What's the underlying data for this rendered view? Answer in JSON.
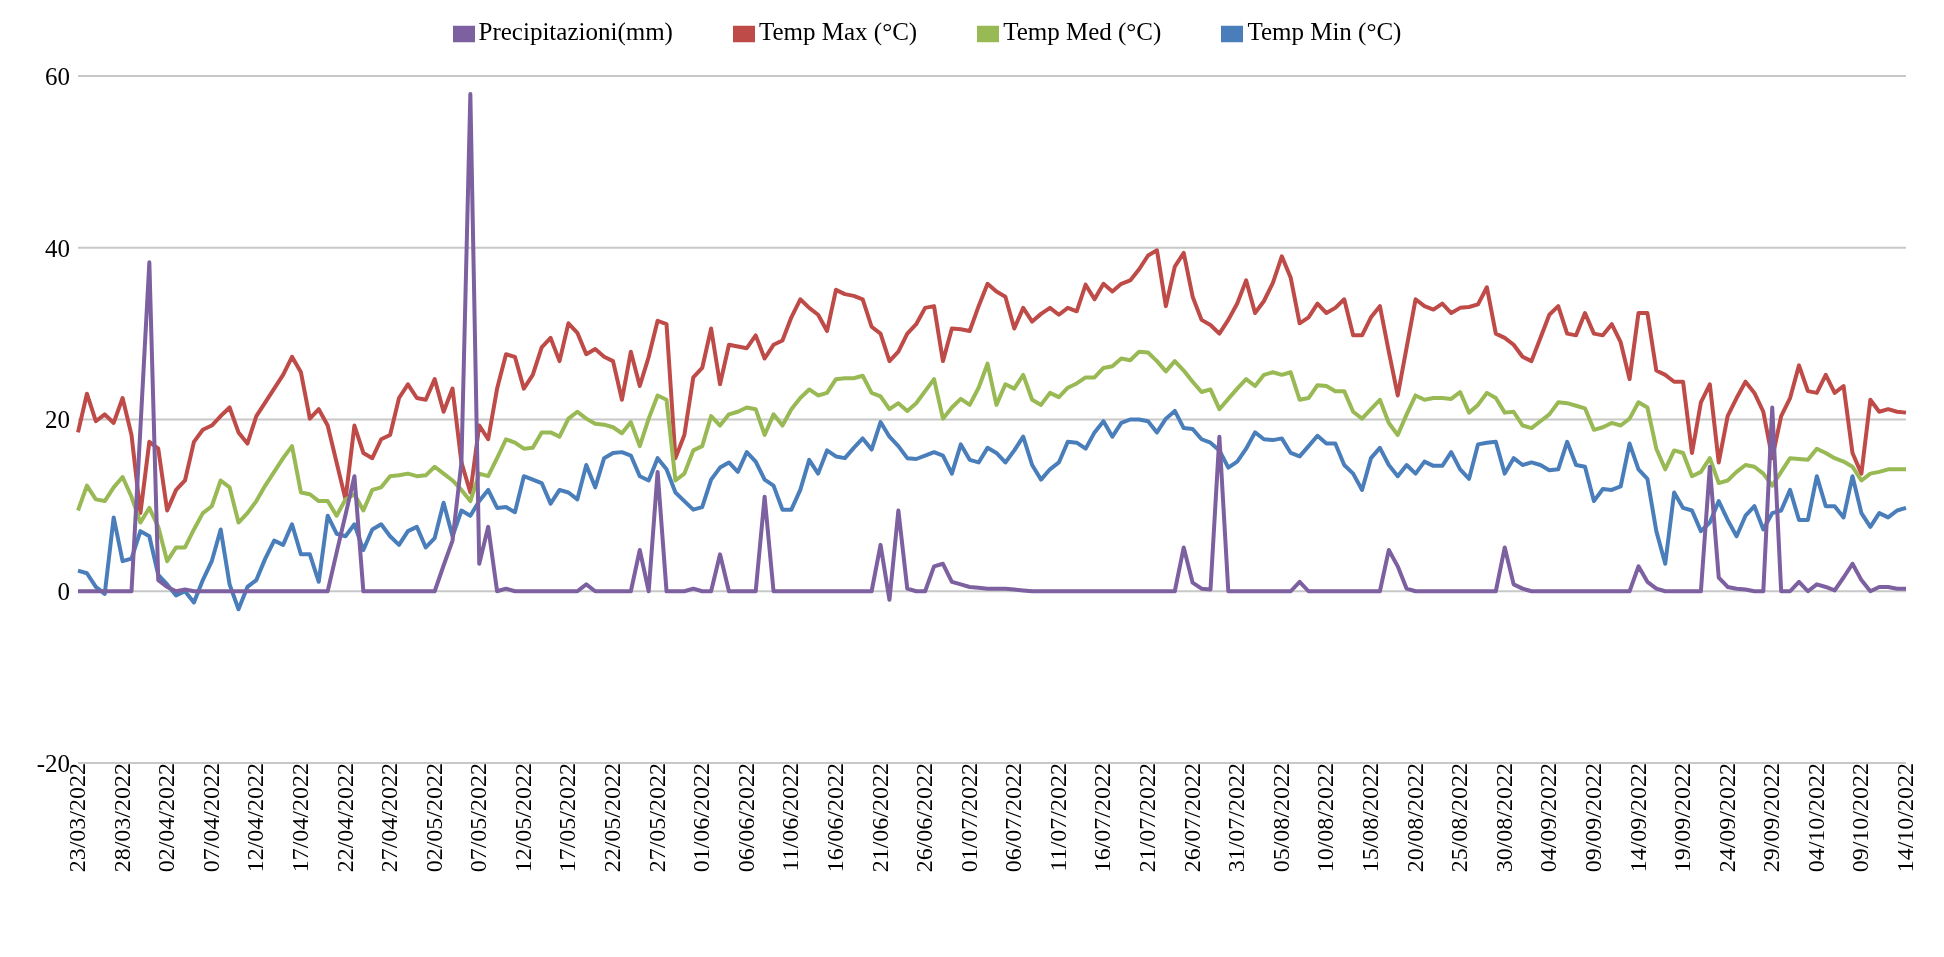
{
  "chart_data": {
    "type": "line",
    "categories": [
      "23/03/2022",
      null,
      null,
      null,
      null,
      "28/03/2022",
      null,
      null,
      null,
      null,
      "02/04/2022",
      null,
      null,
      null,
      null,
      "07/04/2022",
      null,
      null,
      null,
      null,
      "12/04/2022",
      null,
      null,
      null,
      null,
      "17/04/2022",
      null,
      null,
      null,
      null,
      "22/04/2022",
      null,
      null,
      null,
      null,
      "27/04/2022",
      null,
      null,
      null,
      null,
      "02/05/2022",
      null,
      null,
      null,
      null,
      "07/05/2022",
      null,
      null,
      null,
      null,
      "12/05/2022",
      null,
      null,
      null,
      null,
      "17/05/2022",
      null,
      null,
      null,
      null,
      "22/05/2022",
      null,
      null,
      null,
      null,
      "27/05/2022",
      null,
      null,
      null,
      null,
      "01/06/2022",
      null,
      null,
      null,
      null,
      "06/06/2022",
      null,
      null,
      null,
      null,
      "11/06/2022",
      null,
      null,
      null,
      null,
      "16/06/2022",
      null,
      null,
      null,
      null,
      "21/06/2022",
      null,
      null,
      null,
      null,
      "26/06/2022",
      null,
      null,
      null,
      null,
      "01/07/2022",
      null,
      null,
      null,
      null,
      "06/07/2022",
      null,
      null,
      null,
      null,
      "11/07/2022",
      null,
      null,
      null,
      null,
      "16/07/2022",
      null,
      null,
      null,
      null,
      "21/07/2022",
      null,
      null,
      null,
      null,
      "26/07/2022",
      null,
      null,
      null,
      null,
      "31/07/2022",
      null,
      null,
      null,
      null,
      "05/08/2022",
      null,
      null,
      null,
      null,
      "10/08/2022",
      null,
      null,
      null,
      null,
      "15/08/2022",
      null,
      null,
      null,
      null,
      "20/08/2022",
      null,
      null,
      null,
      null,
      "25/08/2022",
      null,
      null,
      null,
      null,
      "30/08/2022",
      null,
      null,
      null,
      null,
      "04/09/2022",
      null,
      null,
      null,
      null,
      "09/09/2022",
      null,
      null,
      null,
      null,
      "14/09/2022",
      null,
      null,
      null,
      null,
      "19/09/2022",
      null,
      null,
      null,
      null,
      "24/09/2022",
      null,
      null,
      null,
      null,
      "29/09/2022",
      null,
      null,
      null,
      null,
      "04/10/2022",
      null,
      null,
      null,
      null,
      "09/10/2022",
      null,
      null,
      null,
      null,
      "14/10/2022"
    ],
    "series": [
      {
        "name": "Temp Min (°C)",
        "color": "#4a7ebb",
        "values": [
          2.4,
          2.1,
          0.5,
          -0.3,
          8.6,
          3.5,
          3.8,
          7.0,
          6.4,
          1.9,
          0.8,
          -0.5,
          0,
          -1.3,
          1.3,
          3.5,
          7.2,
          0.8,
          -2.1,
          0.5,
          1.3,
          3.8,
          5.9,
          5.4,
          7.8,
          4.3,
          4.3,
          1.1,
          8.8,
          6.7,
          6.4,
          7.8,
          4.8,
          7.2,
          7.8,
          6.4,
          5.4,
          7.0,
          7.5,
          5.1,
          6.2,
          10.3,
          6.4,
          9.4,
          8.8,
          10.5,
          11.8,
          9.7,
          9.8,
          9.2,
          13.4,
          13.0,
          12.6,
          10.2,
          11.8,
          11.5,
          10.7,
          14.7,
          12.1,
          15.5,
          16.1,
          16.2,
          15.8,
          13.4,
          12.9,
          15.5,
          14.2,
          11.5,
          10.5,
          9.5,
          9.8,
          13.0,
          14.4,
          15.0,
          13.9,
          16.2,
          15.1,
          13.0,
          12.3,
          9.5,
          9.5,
          11.8,
          15.3,
          13.7,
          16.4,
          15.7,
          15.5,
          16.7,
          17.8,
          16.5,
          19.7,
          18.0,
          16.9,
          15.5,
          15.4,
          15.8,
          16.2,
          15.8,
          13.7,
          17.1,
          15.3,
          15.0,
          16.7,
          16.1,
          15.0,
          16.4,
          18.0,
          14.7,
          13.0,
          14.2,
          15.0,
          17.4,
          17.3,
          16.6,
          18.5,
          19.8,
          18.0,
          19.6,
          20.0,
          20.0,
          19.8,
          18.5,
          20.1,
          21.0,
          19.0,
          18.9,
          17.7,
          17.3,
          16.4,
          14.4,
          15.1,
          16.6,
          18.5,
          17.7,
          17.6,
          17.8,
          16.1,
          15.7,
          16.9,
          18.1,
          17.2,
          17.2,
          14.7,
          13.7,
          11.8,
          15.5,
          16.7,
          14.7,
          13.4,
          14.7,
          13.7,
          15.1,
          14.6,
          14.6,
          16.2,
          14.2,
          13.1,
          17.1,
          17.3,
          17.4,
          13.7,
          15.5,
          14.7,
          15.0,
          14.7,
          14.1,
          14.2,
          17.4,
          14.7,
          14.5,
          10.5,
          11.9,
          11.8,
          12.2,
          17.2,
          14.2,
          13.1,
          7.0,
          3.2,
          11.5,
          9.7,
          9.4,
          7.0,
          8.0,
          10.5,
          8.3,
          6.4,
          8.8,
          9.9,
          7.2,
          9.1,
          9.4,
          11.8,
          8.3,
          8.3,
          13.4,
          9.9,
          9.9,
          8.6,
          13.4,
          9.1,
          7.5,
          9.1,
          8.6,
          9.4,
          9.7
        ]
      },
      {
        "name": "Temp Max (°C)",
        "color": "#be4b48",
        "values": [
          18.5,
          23.0,
          19.8,
          20.6,
          19.6,
          22.5,
          18.2,
          9.1,
          17.4,
          16.6,
          9.4,
          11.8,
          12.9,
          17.4,
          18.8,
          19.3,
          20.4,
          21.4,
          18.5,
          17.2,
          20.4,
          22.0,
          23.6,
          25.2,
          27.3,
          25.5,
          20.1,
          21.2,
          19.3,
          15.0,
          10.7,
          19.3,
          16.1,
          15.5,
          17.7,
          18.2,
          22.5,
          24.1,
          22.5,
          22.3,
          24.7,
          20.9,
          23.6,
          15.0,
          11.5,
          19.3,
          17.7,
          23.6,
          27.6,
          27.3,
          23.6,
          25.2,
          28.4,
          29.5,
          26.8,
          31.2,
          30.1,
          27.6,
          28.2,
          27.3,
          26.8,
          22.3,
          27.9,
          23.9,
          27.3,
          31.5,
          31.1,
          15.5,
          18.2,
          24.9,
          26.0,
          30.6,
          24.1,
          28.7,
          28.5,
          28.3,
          29.8,
          27.1,
          28.7,
          29.2,
          31.9,
          34.0,
          33.0,
          32.2,
          30.3,
          35.1,
          34.6,
          34.4,
          34.0,
          30.8,
          30.0,
          26.8,
          27.9,
          30.0,
          31.1,
          33.0,
          33.2,
          26.8,
          30.6,
          30.5,
          30.3,
          33.2,
          35.8,
          34.9,
          34.3,
          30.6,
          33.0,
          31.4,
          32.3,
          33.0,
          32.2,
          33.0,
          32.6,
          35.7,
          34.0,
          35.8,
          34.9,
          35.8,
          36.2,
          37.5,
          39.1,
          39.7,
          33.2,
          37.8,
          39.4,
          34.3,
          31.6,
          31.0,
          30.0,
          31.6,
          33.5,
          36.2,
          32.4,
          33.8,
          35.9,
          39.0,
          36.5,
          31.2,
          31.9,
          33.5,
          32.4,
          33.0,
          34.0,
          29.8,
          29.8,
          31.9,
          33.2,
          27.9,
          22.8,
          28.4,
          34.0,
          33.2,
          32.8,
          33.5,
          32.4,
          33.0,
          33.1,
          33.4,
          35.4,
          30.0,
          29.5,
          28.7,
          27.3,
          26.8,
          29.5,
          32.2,
          33.2,
          30.0,
          29.8,
          32.4,
          30.0,
          29.8,
          31.1,
          29.0,
          24.7,
          32.4,
          32.4,
          25.7,
          25.2,
          24.4,
          24.4,
          16.1,
          22.0,
          24.1,
          15.0,
          20.4,
          22.5,
          24.4,
          23.1,
          20.9,
          15.5,
          20.4,
          22.5,
          26.3,
          23.3,
          23.1,
          25.2,
          23.1,
          23.9,
          16.1,
          13.7,
          22.3,
          20.9,
          21.2,
          20.9,
          20.8
        ]
      },
      {
        "name": "Temp Med (°C)",
        "color": "#98b954",
        "values": [
          9.4,
          12.3,
          10.7,
          10.5,
          12.1,
          13.3,
          11.0,
          8.0,
          9.7,
          7.5,
          3.5,
          5.1,
          5.1,
          7.2,
          9.1,
          9.9,
          12.9,
          12.1,
          8.0,
          9.1,
          10.5,
          12.3,
          13.9,
          15.5,
          16.9,
          11.5,
          11.3,
          10.5,
          10.5,
          8.8,
          10.7,
          11.3,
          9.4,
          11.8,
          12.1,
          13.4,
          13.5,
          13.7,
          13.4,
          13.5,
          14.5,
          13.7,
          12.9,
          11.8,
          10.5,
          13.7,
          13.4,
          15.5,
          17.7,
          17.3,
          16.6,
          16.7,
          18.5,
          18.5,
          18.0,
          20.1,
          20.9,
          20.1,
          19.5,
          19.4,
          19.1,
          18.4,
          19.7,
          16.9,
          20.1,
          22.8,
          22.3,
          12.9,
          13.7,
          16.4,
          16.9,
          20.4,
          19.3,
          20.6,
          20.9,
          21.4,
          21.2,
          18.2,
          20.6,
          19.3,
          21.2,
          22.5,
          23.5,
          22.8,
          23.1,
          24.7,
          24.8,
          24.8,
          25.1,
          23.1,
          22.7,
          21.2,
          21.9,
          21.0,
          21.9,
          23.3,
          24.7,
          20.1,
          21.4,
          22.4,
          21.7,
          23.7,
          26.5,
          21.7,
          24.1,
          23.6,
          25.2,
          22.3,
          21.7,
          23.1,
          22.6,
          23.7,
          24.2,
          24.9,
          24.9,
          26.0,
          26.2,
          27.1,
          26.9,
          27.9,
          27.8,
          26.8,
          25.6,
          26.8,
          25.7,
          24.4,
          23.2,
          23.5,
          21.2,
          22.4,
          23.6,
          24.7,
          23.9,
          25.2,
          25.5,
          25.2,
          25.5,
          22.3,
          22.5,
          24.0,
          23.9,
          23.3,
          23.3,
          20.9,
          20.1,
          21.2,
          22.3,
          19.6,
          18.2,
          20.6,
          22.8,
          22.3,
          22.5,
          22.5,
          22.4,
          23.2,
          20.8,
          21.7,
          23.1,
          22.5,
          20.8,
          20.9,
          19.3,
          19.0,
          19.8,
          20.6,
          22.0,
          21.9,
          21.6,
          21.3,
          18.8,
          19.1,
          19.6,
          19.3,
          20.1,
          22.0,
          21.4,
          16.6,
          14.2,
          16.4,
          16.1,
          13.4,
          13.9,
          15.5,
          12.6,
          12.9,
          13.9,
          14.7,
          14.5,
          13.7,
          12.3,
          13.9,
          15.5,
          15.4,
          15.3,
          16.6,
          16.1,
          15.5,
          15.1,
          14.5,
          12.9,
          13.7,
          13.9,
          14.2,
          14.2,
          14.2
        ]
      },
      {
        "name": "Precipitazioni(mm)",
        "color": "#7d60a0",
        "values": [
          0,
          0,
          0,
          0,
          0,
          0,
          0,
          19,
          38.3,
          1.3,
          0.5,
          0,
          0.2,
          0,
          0,
          0,
          0,
          0,
          0,
          0,
          0,
          0,
          0,
          0,
          0,
          0,
          0,
          0,
          0,
          4.5,
          8.9,
          13.4,
          0,
          0,
          0,
          0,
          0,
          0,
          0,
          0,
          0,
          3,
          5.9,
          15,
          57.9,
          3.2,
          7.5,
          0,
          0.3,
          0,
          0,
          0,
          0,
          0,
          0,
          0,
          0,
          0.8,
          0,
          0,
          0,
          0,
          0,
          4.8,
          0,
          13.9,
          0,
          0,
          0,
          0.3,
          0,
          0,
          4.3,
          0,
          0,
          0,
          0,
          11.0,
          0,
          0,
          0,
          0,
          0,
          0,
          0,
          0,
          0,
          0,
          0,
          0,
          5.4,
          -1.0,
          9.4,
          0.3,
          0,
          0,
          2.9,
          3.2,
          1.1,
          0.8,
          0.5,
          0.4,
          0.3,
          0.3,
          0.3,
          0.2,
          0.1,
          0,
          0,
          0,
          0,
          0,
          0,
          0,
          0,
          0,
          0,
          0,
          0,
          0,
          0,
          0,
          0,
          0,
          5.1,
          1.0,
          0.3,
          0.2,
          18.0,
          0,
          0,
          0,
          0,
          0,
          0,
          0,
          0,
          1.1,
          0,
          0,
          0,
          0,
          0,
          0,
          0,
          0,
          0,
          4.8,
          2.9,
          0.3,
          0,
          0,
          0,
          0,
          0,
          0,
          0,
          0,
          0,
          0,
          5.1,
          0.8,
          0.3,
          0,
          0,
          0,
          0,
          0,
          0,
          0,
          0,
          0,
          0,
          0,
          0,
          2.9,
          1.1,
          0.3,
          0,
          0,
          0,
          0,
          0,
          14.5,
          1.6,
          0.5,
          0.3,
          0.2,
          0,
          0,
          21.4,
          0,
          0,
          1.1,
          0,
          0.8,
          0.5,
          0.1,
          1.6,
          3.2,
          1.3,
          0,
          0.5,
          0.5,
          0.3,
          0.3
        ]
      }
    ],
    "ylim": [
      -20,
      60
    ],
    "yticks": [
      -20,
      0,
      20,
      40,
      60
    ],
    "grid": "y",
    "legend": "top",
    "marker": "none",
    "line_style": "solid"
  }
}
